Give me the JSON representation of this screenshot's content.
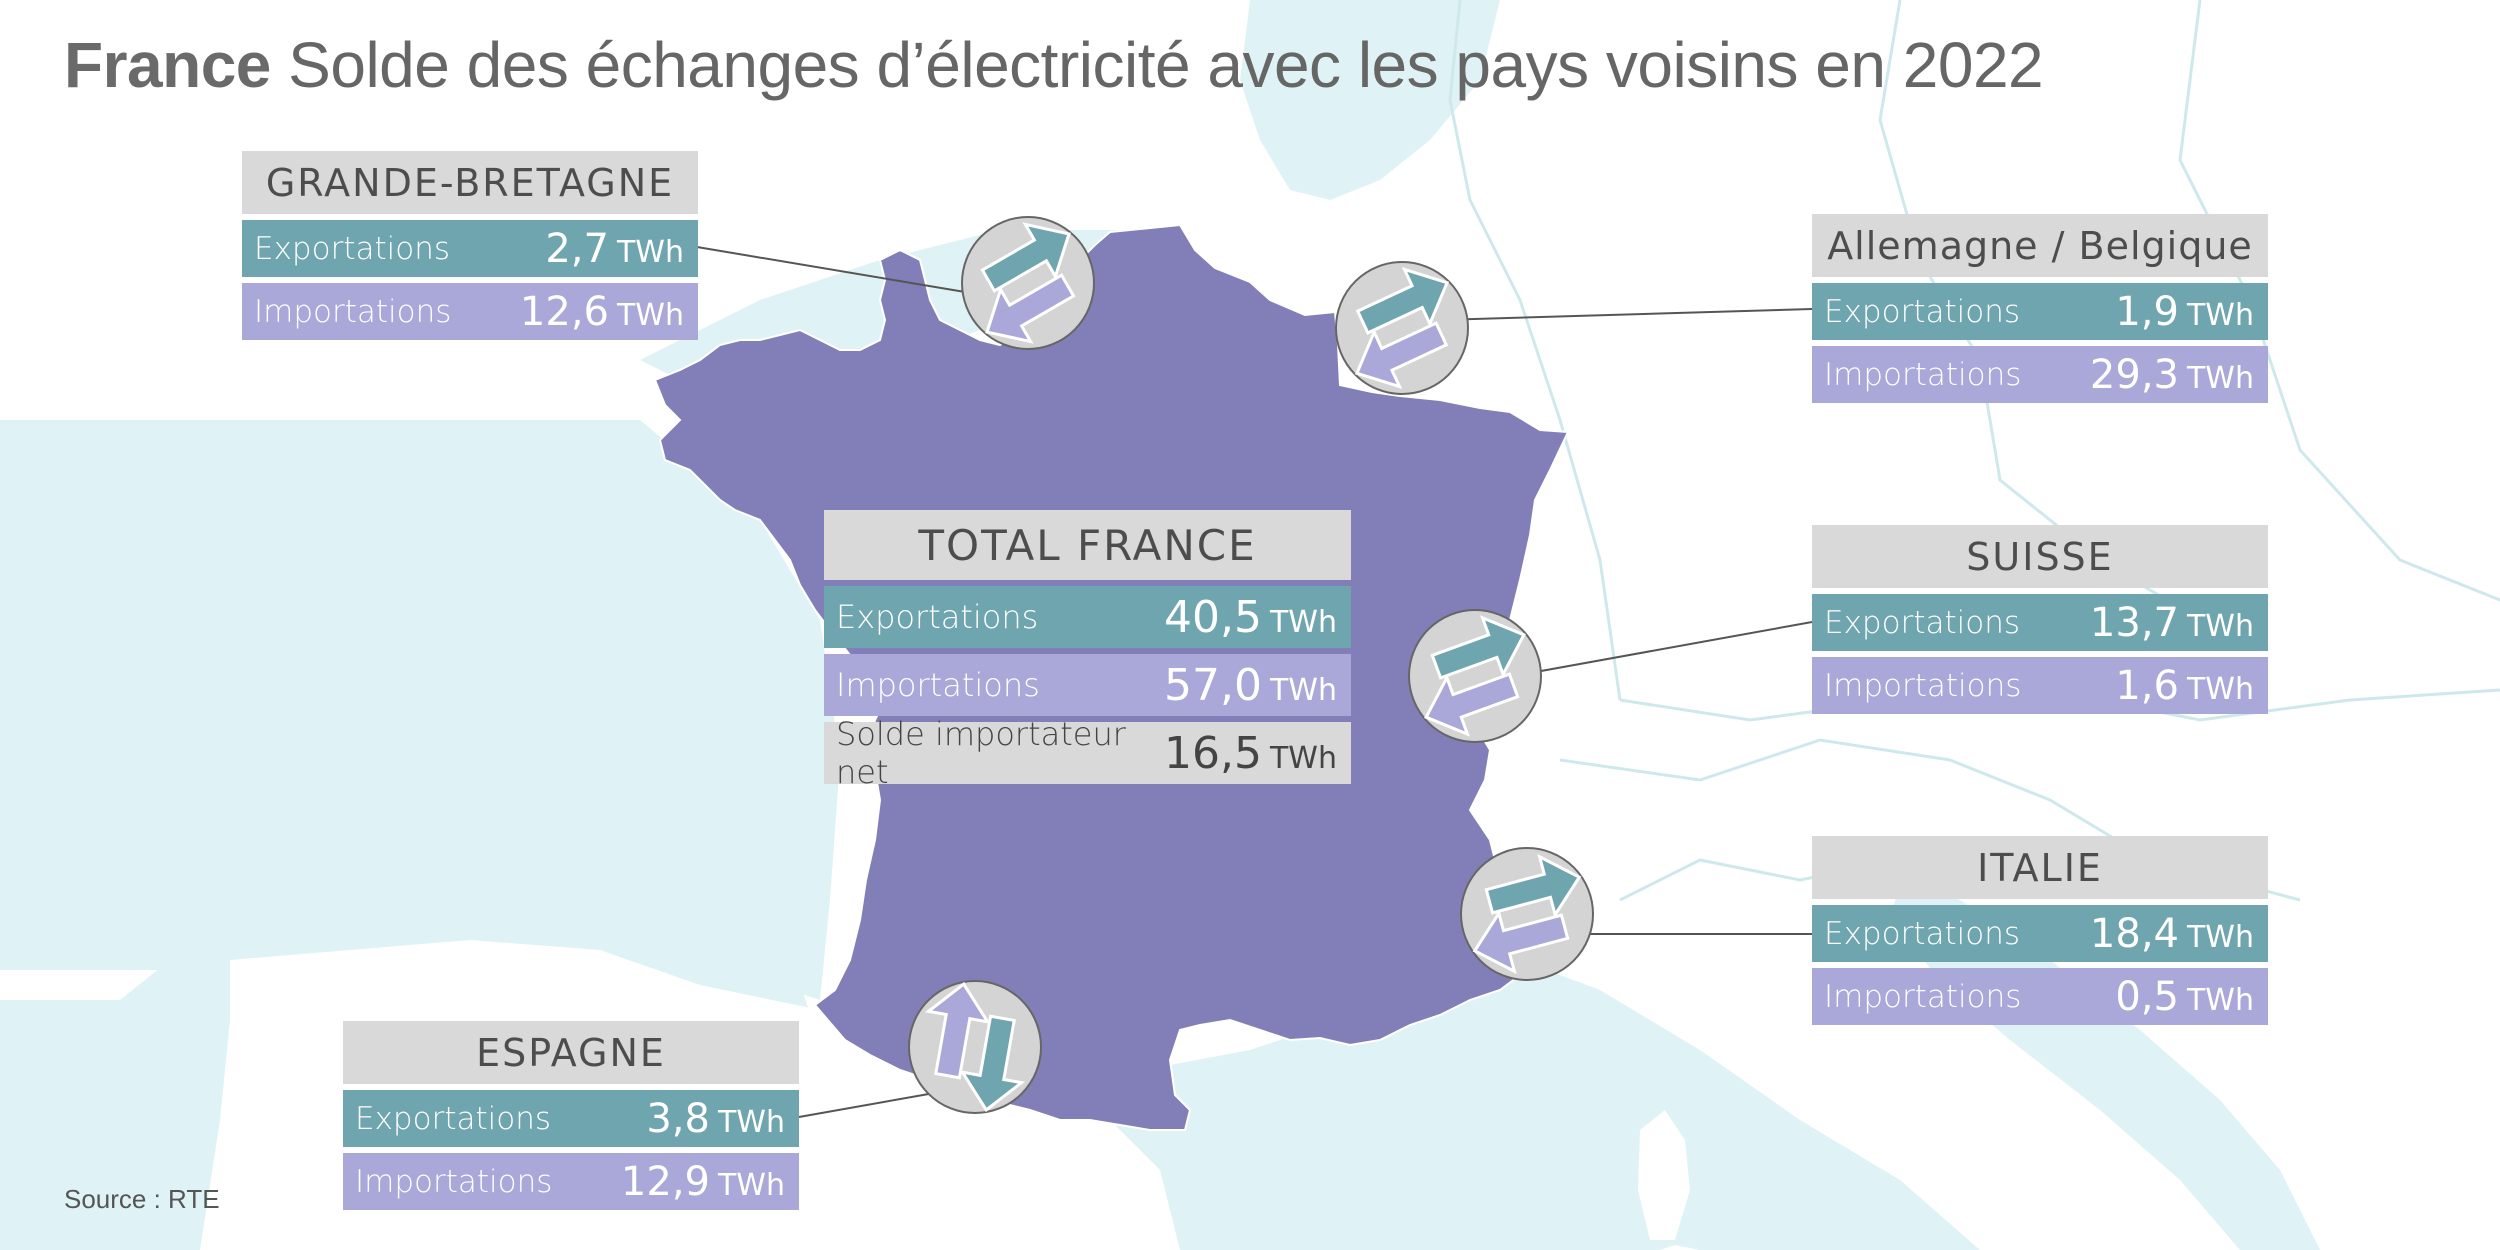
{
  "title": {
    "country": "France",
    "text": "Solde des échanges d’électricité avec les pays voisins en 2022"
  },
  "source": "Source : RTE",
  "unit": "TWh",
  "colors": {
    "sea": "#dff2f5",
    "neighbor_land": "#ffffff",
    "france": "#827eb7",
    "exports": "#6fa5ae",
    "imports": "#aaa7d9",
    "header": "#d9d9d9"
  },
  "total": {
    "name": "TOTAL FRANCE",
    "exports_label": "Exportations",
    "exports": "40,5",
    "imports_label": "Importations",
    "imports": "57,0",
    "net_label": "Solde importateur net",
    "net": "16,5"
  },
  "neighbors": [
    {
      "id": "gb",
      "name": "GRANDE-BRETAGNE",
      "exports_label": "Exportations",
      "exports": "2,7",
      "imports_label": "Importations",
      "imports": "12,6",
      "arrow_icon": "exchange-arrows-icon"
    },
    {
      "id": "de_be",
      "name": "Allemagne / Belgique",
      "exports_label": "Exportations",
      "exports": "1,9",
      "imports_label": "Importations",
      "imports": "29,3",
      "arrow_icon": "exchange-arrows-icon"
    },
    {
      "id": "ch",
      "name": "SUISSE",
      "exports_label": "Exportations",
      "exports": "13,7",
      "imports_label": "Importations",
      "imports": "1,6",
      "arrow_icon": "exchange-arrows-icon"
    },
    {
      "id": "it",
      "name": "ITALIE",
      "exports_label": "Exportations",
      "exports": "18,4",
      "imports_label": "Importations",
      "imports": "0,5",
      "arrow_icon": "exchange-arrows-icon"
    },
    {
      "id": "es",
      "name": "ESPAGNE",
      "exports_label": "Exportations",
      "exports": "3,8",
      "imports_label": "Importations",
      "imports": "12,9",
      "arrow_icon": "exchange-arrows-icon"
    }
  ]
}
